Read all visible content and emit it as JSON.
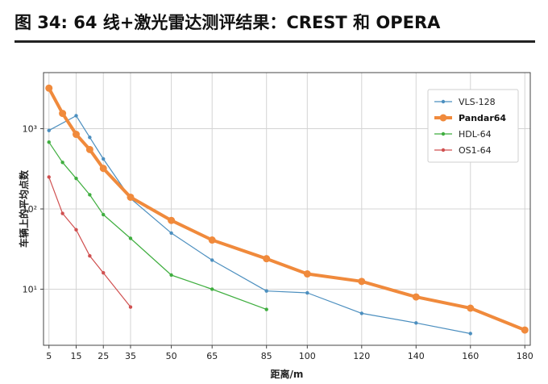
{
  "figure": {
    "title": "图 34: 64 线+激光雷达测评结果：CREST 和 OPERA"
  },
  "chart_data": {
    "type": "line",
    "title": "图 34: 64 线+激光雷达测评结果：CREST 和 OPERA",
    "xlabel": "距离/m",
    "ylabel": "车辆上的平均点数",
    "x_ticks": [
      5,
      15,
      25,
      35,
      50,
      65,
      85,
      100,
      120,
      140,
      160,
      180
    ],
    "y_scale": "log",
    "y_ticks": [
      {
        "value": 10,
        "label": "10¹"
      },
      {
        "value": 100,
        "label": "10²"
      },
      {
        "value": 1000,
        "label": "10³"
      }
    ],
    "xlim": [
      3,
      182
    ],
    "ylim": [
      2,
      5000
    ],
    "grid": true,
    "legend_position": "top-right",
    "series": [
      {
        "name": "VLS-128",
        "color": "#4c8fbf",
        "width": 1.2,
        "marker": 2.2,
        "bold": false,
        "x": [
          5,
          15,
          20,
          25,
          35,
          50,
          65,
          85,
          100,
          120,
          140,
          160
        ],
        "y": [
          950,
          1450,
          780,
          420,
          135,
          50,
          23,
          9.5,
          9,
          5,
          3.8,
          2.8
        ]
      },
      {
        "name": "Pandar64",
        "color": "#f08a3c",
        "width": 4,
        "marker": 4.5,
        "bold": true,
        "x": [
          5,
          10,
          15,
          20,
          25,
          35,
          50,
          65,
          85,
          100,
          120,
          140,
          160,
          180
        ],
        "y": [
          3200,
          1550,
          850,
          550,
          320,
          140,
          72,
          41,
          24,
          15.5,
          12.5,
          8,
          5.8,
          3.1
        ]
      },
      {
        "name": "HDL-64",
        "color": "#3fae3f",
        "width": 1.2,
        "marker": 2.2,
        "bold": false,
        "x": [
          5,
          10,
          15,
          20,
          25,
          35,
          50,
          65,
          85
        ],
        "y": [
          680,
          380,
          240,
          150,
          85,
          43,
          15,
          10,
          5.6
        ]
      },
      {
        "name": "OS1-64",
        "color": "#d05050",
        "width": 1.2,
        "marker": 2.2,
        "bold": false,
        "x": [
          5,
          10,
          15,
          20,
          25,
          35
        ],
        "y": [
          250,
          88,
          55,
          26,
          16,
          6
        ]
      }
    ]
  }
}
